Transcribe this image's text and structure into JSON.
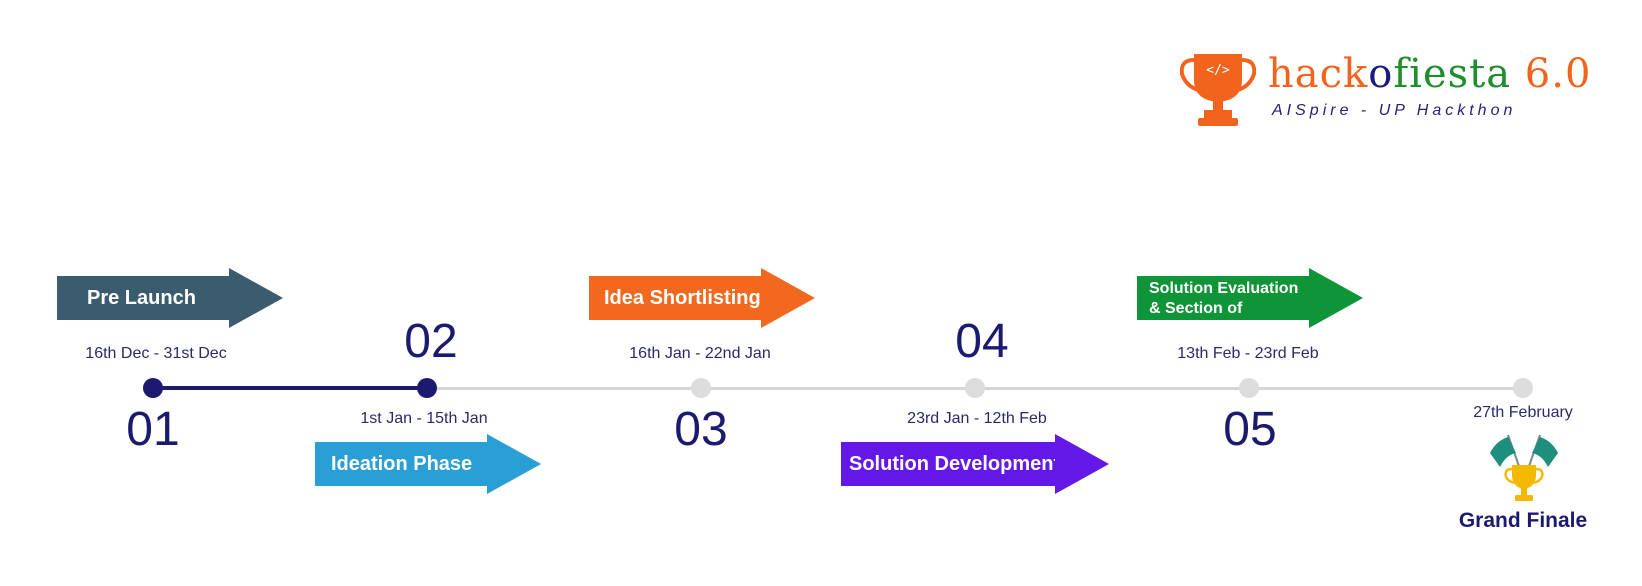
{
  "logo": {
    "wordmark_part1": "hack",
    "wordmark_part2": "o",
    "wordmark_part3": "fiesta",
    "wordmark_part4": " 6.0",
    "tagline": "AISpire - UP Hackthon",
    "cup_code_glyph": "</>",
    "cup_color": "#f2641e"
  },
  "colors": {
    "accent_dark": "#1c1a6e",
    "track": "#d6d6d6"
  },
  "phases": [
    {
      "number": "01",
      "label": "Pre Launch",
      "dates": "16th Dec - 31st Dec",
      "color": "#3b5c6e",
      "completed": true
    },
    {
      "number": "02",
      "label": "Ideation Phase",
      "dates": "1st Jan -  15th Jan",
      "color": "#2a9fd6",
      "completed": true
    },
    {
      "number": "03",
      "label": "Idea Shortlisting",
      "dates": "16th Jan - 22nd Jan",
      "color": "#f2681f",
      "completed": false
    },
    {
      "number": "04",
      "label": "Solution Development",
      "dates": "23rd Jan - 12th Feb",
      "color": "#6418e8",
      "completed": false
    },
    {
      "number": "05",
      "label_line1": "Solution Evaluation",
      "label_line2": "& Section of Finalists",
      "dates": "13th Feb - 23rd Feb",
      "color": "#0f9438",
      "completed": false
    }
  ],
  "finale": {
    "label": "Grand Finale",
    "date": "27th February",
    "icon": "trophy-flags-icon"
  }
}
